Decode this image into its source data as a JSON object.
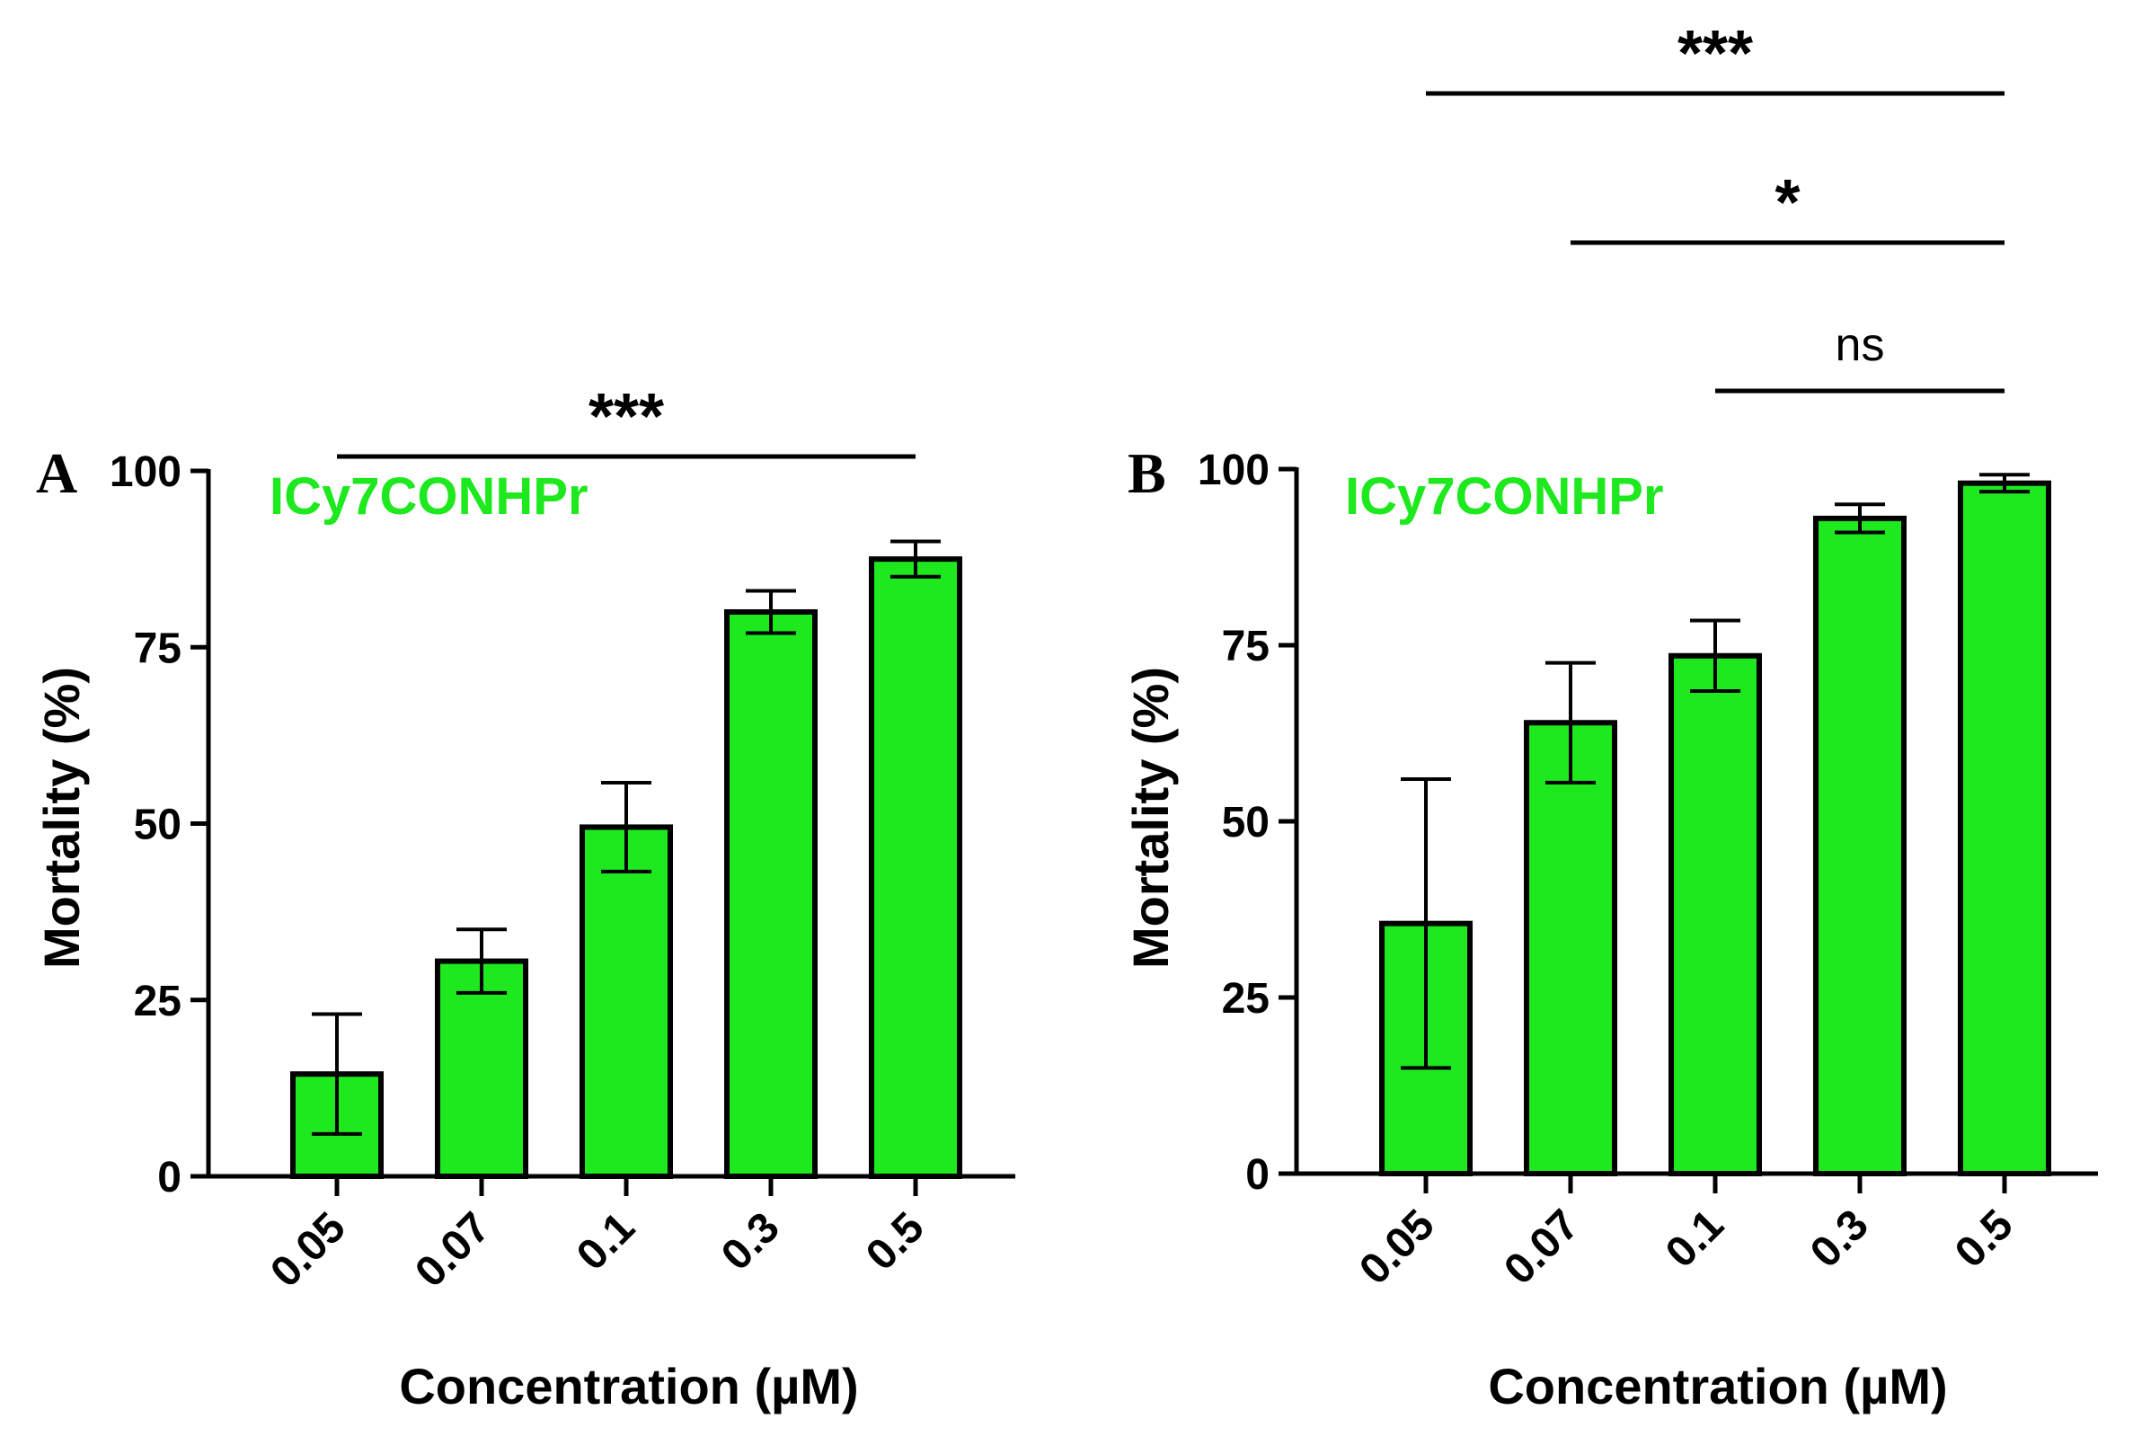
{
  "colors": {
    "bar_fill": "#1ee81e",
    "bar_stroke": "#000000",
    "label_green": "#1ee81e"
  },
  "chart_data": [
    {
      "panel": "A",
      "type": "bar",
      "annotation": "ICy7CONHPr",
      "categories": [
        "0.05",
        "0.07",
        "0.1",
        "0.3",
        "0.5"
      ],
      "values": [
        14.5,
        30.5,
        49.5,
        80,
        87.5
      ],
      "errors": [
        8.5,
        4.5,
        6.3,
        3,
        2.5
      ],
      "xlabel": "Concentration (µM)",
      "ylabel": "Mortality (%)",
      "ylim": [
        0,
        100
      ],
      "yticks": [
        "0",
        "25",
        "50",
        "75",
        "100"
      ],
      "grid": false,
      "significance": [
        {
          "from": "0.05",
          "to": "0.5",
          "label": "***"
        }
      ]
    },
    {
      "panel": "B",
      "type": "bar",
      "annotation": "ICy7CONHPr",
      "categories": [
        "0.05",
        "0.07",
        "0.1",
        "0.3",
        "0.5"
      ],
      "values": [
        35.5,
        64,
        73.5,
        93,
        98
      ],
      "errors": [
        20.5,
        8.5,
        5,
        2,
        1.2
      ],
      "xlabel": "Concentration (µM)",
      "ylabel": "Mortality (%)",
      "ylim": [
        0,
        100
      ],
      "yticks": [
        "0",
        "25",
        "50",
        "75",
        "100"
      ],
      "grid": false,
      "significance": [
        {
          "from": "0.05",
          "to": "0.5",
          "label": "***"
        },
        {
          "from": "0.07",
          "to": "0.5",
          "label": "*"
        },
        {
          "from": "0.1",
          "to": "0.5",
          "label": "ns"
        }
      ]
    }
  ]
}
